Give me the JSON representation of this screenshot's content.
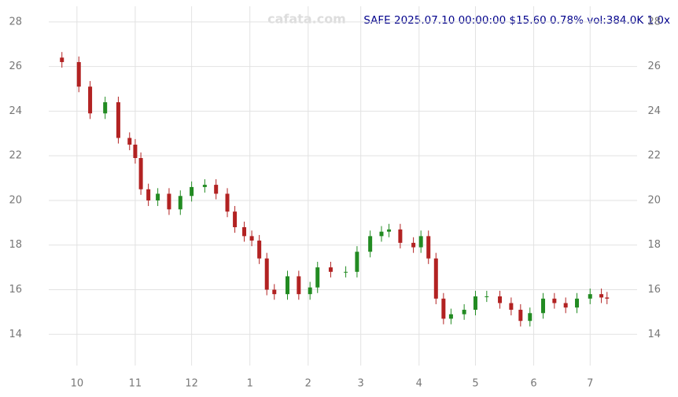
{
  "chart_data": {
    "type": "candlestick",
    "title": "SAFE 2025.07.10 00:00:00 $15.60 0.78% vol:384.0K 1.0x",
    "watermark": "cafata.com",
    "x": [
      3,
      12,
      18,
      26,
      33,
      39,
      42,
      45,
      49,
      54,
      60,
      66,
      72,
      79,
      85,
      91,
      95,
      100,
      104,
      108,
      112,
      116,
      123,
      129,
      135,
      139,
      146,
      154,
      160,
      167,
      173,
      177,
      183,
      190,
      194,
      198,
      202,
      206,
      210,
      217,
      223,
      229,
      236,
      242,
      247,
      252,
      259,
      265,
      271,
      277,
      284,
      290,
      293
    ],
    "open": [
      26.4,
      26.2,
      25.1,
      23.9,
      24.4,
      22.8,
      22.5,
      21.9,
      20.5,
      20.0,
      20.3,
      19.6,
      20.2,
      20.6,
      20.7,
      20.3,
      19.5,
      18.8,
      18.4,
      18.2,
      17.4,
      16.0,
      15.8,
      16.6,
      15.8,
      16.1,
      17.0,
      16.8,
      16.8,
      17.7,
      18.4,
      18.6,
      18.7,
      18.1,
      17.9,
      18.4,
      17.4,
      15.6,
      14.7,
      14.9,
      15.1,
      15.7,
      15.7,
      15.4,
      15.1,
      14.6,
      14.95,
      15.6,
      15.4,
      15.2,
      15.6,
      15.8,
      15.65
    ],
    "high": [
      26.65,
      26.45,
      25.35,
      24.65,
      24.65,
      23.05,
      22.75,
      22.15,
      20.75,
      20.55,
      20.55,
      20.45,
      20.85,
      20.95,
      20.95,
      20.55,
      19.75,
      19.05,
      18.65,
      18.45,
      17.65,
      16.25,
      16.85,
      16.85,
      16.35,
      17.25,
      17.25,
      17.05,
      17.95,
      18.65,
      18.85,
      18.95,
      18.95,
      18.35,
      18.65,
      18.65,
      17.65,
      15.85,
      15.15,
      15.35,
      15.95,
      15.95,
      15.95,
      15.65,
      15.35,
      15.2,
      15.85,
      15.85,
      15.65,
      15.85,
      16.05,
      16.05,
      15.9
    ],
    "low": [
      25.95,
      24.85,
      23.65,
      23.65,
      22.55,
      22.25,
      21.65,
      20.25,
      19.75,
      19.75,
      19.35,
      19.35,
      19.95,
      20.35,
      20.05,
      19.25,
      18.55,
      18.15,
      17.95,
      17.15,
      15.75,
      15.55,
      15.55,
      15.55,
      15.55,
      15.85,
      16.55,
      16.55,
      16.55,
      17.45,
      18.15,
      18.35,
      17.85,
      17.65,
      17.65,
      17.15,
      15.35,
      14.45,
      14.45,
      14.65,
      14.85,
      15.45,
      15.15,
      14.85,
      14.35,
      14.35,
      14.7,
      15.15,
      14.95,
      14.95,
      15.35,
      15.4,
      15.35
    ],
    "close": [
      26.2,
      25.1,
      23.9,
      24.4,
      22.8,
      22.5,
      21.9,
      20.5,
      20.0,
      20.3,
      19.6,
      20.2,
      20.6,
      20.7,
      20.3,
      19.5,
      18.8,
      18.4,
      18.2,
      17.4,
      16.0,
      15.8,
      16.6,
      15.8,
      16.1,
      17.0,
      16.8,
      16.8,
      17.7,
      18.4,
      18.6,
      18.7,
      18.1,
      17.9,
      18.4,
      17.4,
      15.6,
      14.7,
      14.9,
      15.1,
      15.7,
      15.7,
      15.4,
      15.1,
      14.6,
      14.95,
      15.6,
      15.4,
      15.2,
      15.6,
      15.8,
      15.65,
      15.6
    ],
    "up_color": "#228b22",
    "down_color": "#b22222",
    "xlim": [
      -4,
      309
    ],
    "xticks": [
      {
        "value": 11,
        "label": "10"
      },
      {
        "value": 42,
        "label": "11"
      },
      {
        "value": 72,
        "label": "12"
      },
      {
        "value": 103,
        "label": "1"
      },
      {
        "value": 134,
        "label": "2"
      },
      {
        "value": 162,
        "label": "3"
      },
      {
        "value": 193,
        "label": "4"
      },
      {
        "value": 223,
        "label": "5"
      },
      {
        "value": 254,
        "label": "6"
      },
      {
        "value": 284,
        "label": "7"
      }
    ],
    "ylim": [
      12.6,
      28.7
    ],
    "yticks": [
      14,
      16,
      18,
      20,
      22,
      24,
      26,
      28
    ],
    "grid": true
  }
}
